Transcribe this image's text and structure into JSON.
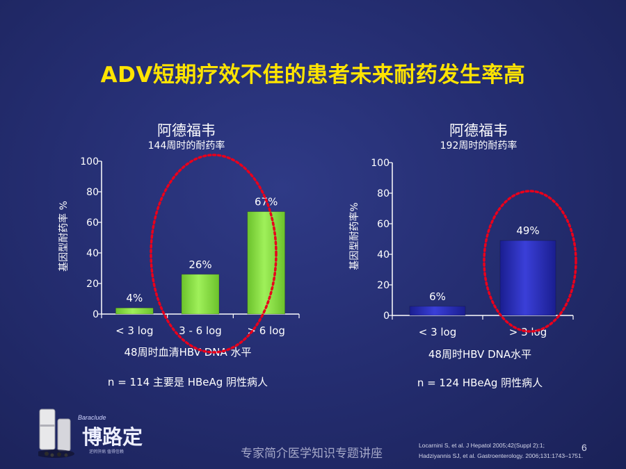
{
  "slide": {
    "title": "ADV短期疗效不佳的患者未来耐药发生率高",
    "footer": "专家简介医学知识专题讲座",
    "slide_number": "6",
    "references": [
      "Locarnini S, et al. J Hepatol 2005;42(Suppl 2):1;",
      "Hadziyannis SJ, et al. Gastroenterology. 2006;131:1743–1751."
    ],
    "logo": {
      "name": "博路定",
      "brand": "Baraclude",
      "tagline": "逆转肝病 值得信赖"
    }
  },
  "chart_data": [
    {
      "type": "bar",
      "title": "阿德福韦",
      "subtitle": "144周时的耐药率",
      "ylabel": "基因型耐药率 %",
      "xlabel": "48周时血清HBV DNA 水平",
      "note": "n = 114 主要是 HBeAg 阴性病人",
      "categories": [
        "< 3 log",
        "3 - 6 log",
        "> 6 log"
      ],
      "values": [
        4,
        26,
        67
      ],
      "data_labels": [
        "4%",
        "26%",
        "67%"
      ],
      "yticks": [
        "0",
        "20",
        "40",
        "60",
        "80",
        "100"
      ],
      "ylim": [
        0,
        100
      ],
      "bar_color": "#8fe04a",
      "highlight": "3 - 6 log and > 6 log",
      "highlight_color": "#e8001c"
    },
    {
      "type": "bar",
      "title": "阿德福韦",
      "subtitle": "192周时的耐药率",
      "ylabel": "基因型耐药率%",
      "xlabel": "48周时HBV DNA水平",
      "note": "n = 124 HBeAg 阴性病人",
      "categories": [
        "< 3 log",
        "> 3 log"
      ],
      "values": [
        6,
        49
      ],
      "data_labels": [
        "6%",
        "49%"
      ],
      "yticks": [
        "0",
        "20",
        "40",
        "60",
        "80",
        "100"
      ],
      "ylim": [
        0,
        100
      ],
      "bar_color": "#2a2ec0",
      "highlight": "> 3 log",
      "highlight_color": "#e8001c"
    }
  ]
}
